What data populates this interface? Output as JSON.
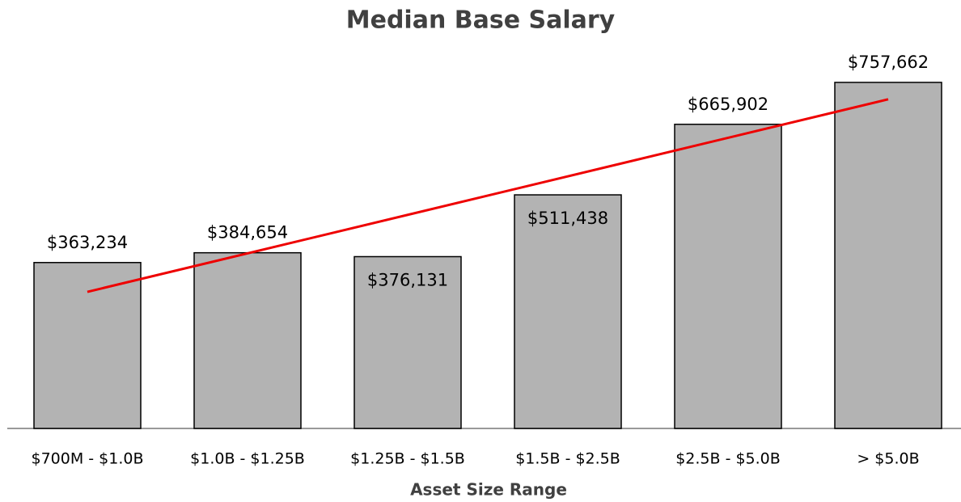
{
  "chart_data": {
    "type": "bar",
    "title": "Median Base Salary",
    "x_label": "Asset Size Range",
    "categories": [
      "$700M - $1.0B",
      "$1.0B - $1.25B",
      "$1.25B - $1.5B",
      "$1.5B - $2.5B",
      "$2.5B - $5.0B",
      "> $5.0B"
    ],
    "values": [
      363234,
      384654,
      376131,
      511438,
      665902,
      757662
    ],
    "value_labels": [
      "$363,234",
      "$384,654",
      "$376,131",
      "$511,438",
      "$665,902",
      "$757,662"
    ],
    "color": "#b3b3b3",
    "ylim": [
      0,
      800000
    ],
    "trendline": {
      "type": "linear",
      "color": "#ee0000"
    }
  }
}
